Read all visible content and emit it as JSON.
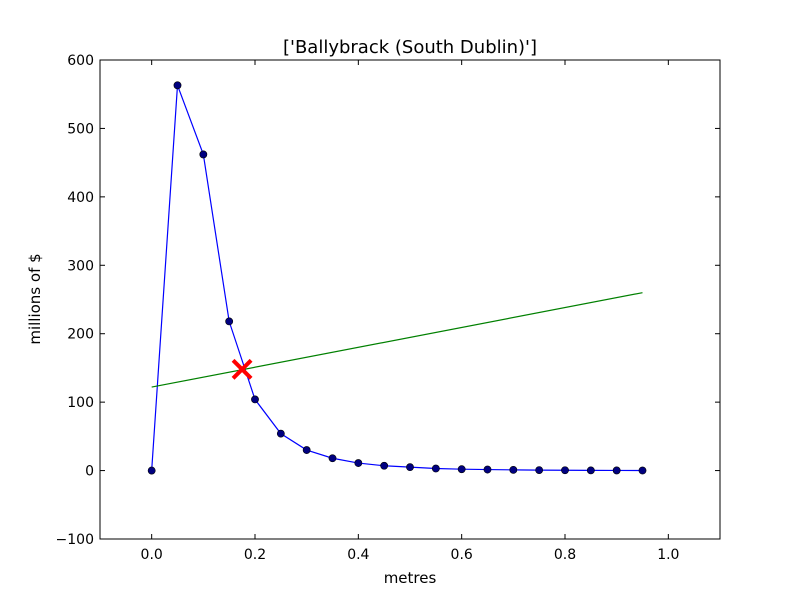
{
  "chart_data": {
    "type": "line",
    "title": "['Ballybrack (South Dublin)']",
    "xlabel": "metres",
    "ylabel": "millions of $",
    "xlim": [
      -0.1,
      1.1
    ],
    "ylim": [
      -100,
      600
    ],
    "xticks": [
      0.0,
      0.2,
      0.4,
      0.6,
      0.8,
      1.0
    ],
    "xtick_labels": [
      "0.0",
      "0.2",
      "0.4",
      "0.6",
      "0.8",
      "1.0"
    ],
    "yticks": [
      -100,
      0,
      100,
      200,
      300,
      400,
      500,
      600
    ],
    "ytick_labels": [
      "−100",
      "0",
      "100",
      "200",
      "300",
      "400",
      "500",
      "600"
    ],
    "grid": false,
    "series": [
      {
        "color": "#0000ff",
        "marker": "circle",
        "x": [
          0.0,
          0.05,
          0.1,
          0.15,
          0.2,
          0.25,
          0.3,
          0.35,
          0.4,
          0.45,
          0.5,
          0.55,
          0.6,
          0.65,
          0.7,
          0.75,
          0.8,
          0.85,
          0.9,
          0.95
        ],
        "y": [
          0,
          563,
          462,
          218,
          104,
          54,
          30,
          18,
          11,
          7,
          5,
          3,
          2,
          1.5,
          1,
          0.7,
          0.5,
          0.3,
          0.2,
          0.1
        ]
      },
      {
        "color": "#008000",
        "marker": "none",
        "x": [
          0.0,
          0.95
        ],
        "y": [
          122,
          260
        ]
      }
    ],
    "annotations": [
      {
        "type": "x-marker",
        "color": "#ff0000",
        "x": 0.175,
        "y": 148
      }
    ]
  }
}
